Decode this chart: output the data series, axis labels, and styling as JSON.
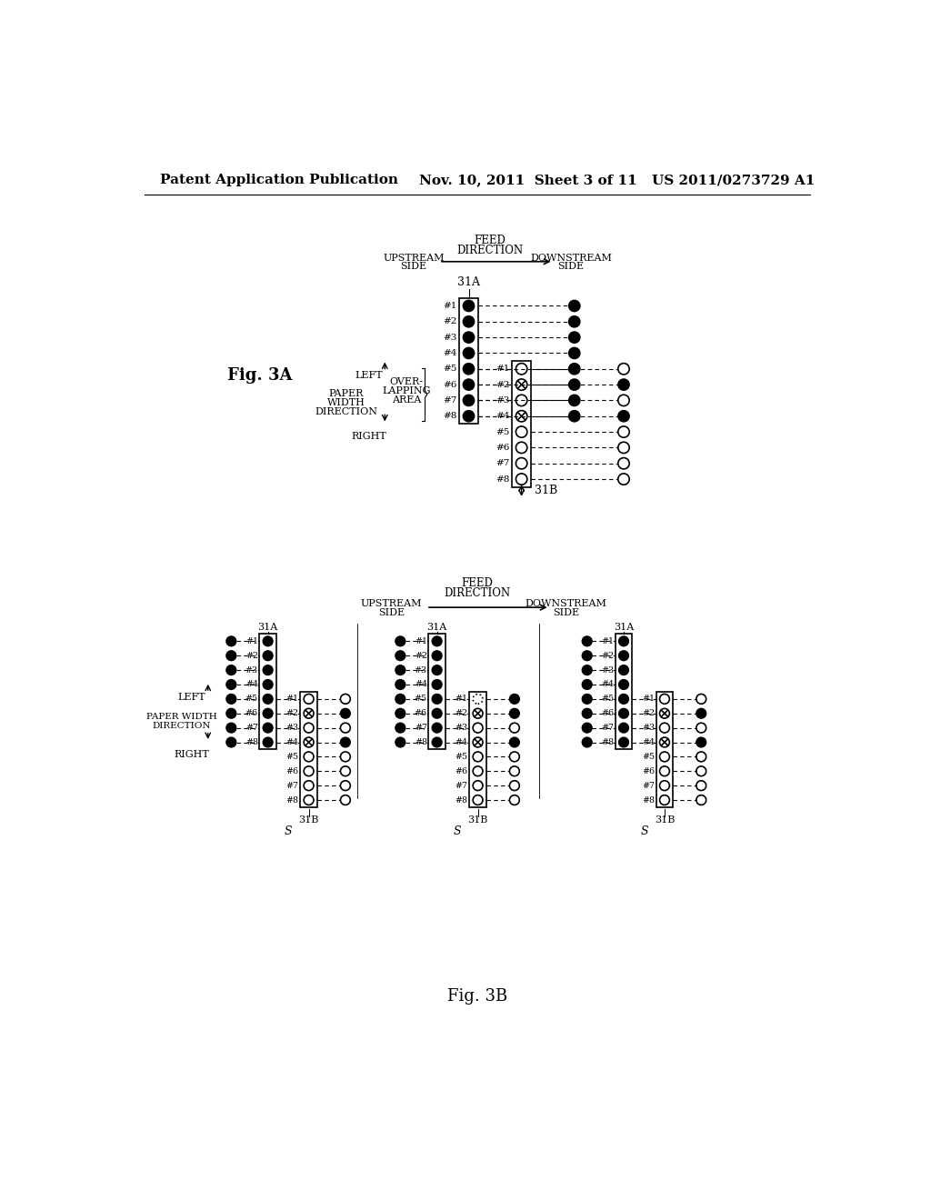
{
  "header_left": "Patent Application Publication",
  "header_mid": "Nov. 10, 2011  Sheet 3 of 11",
  "header_right": "US 2011/0273729 A1",
  "fig3a_label": "Fig. 3A",
  "fig3b_label": "Fig. 3B",
  "background": "#ffffff"
}
